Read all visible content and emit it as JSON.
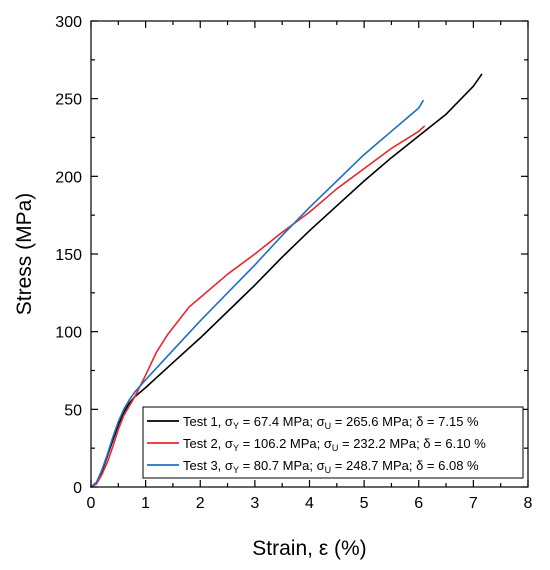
{
  "chart_data": {
    "type": "line",
    "title": "",
    "xlabel": "Strain, ε (%)",
    "ylabel": "Stress (MPa)",
    "xlim": [
      0,
      8
    ],
    "ylim": [
      0,
      300
    ],
    "x_ticks": [
      "0",
      "1",
      "2",
      "3",
      "4",
      "5",
      "6",
      "7",
      "8"
    ],
    "y_ticks": [
      "0",
      "50",
      "100",
      "150",
      "200",
      "250",
      "300"
    ],
    "grid": false,
    "legend_position": "bottom-right",
    "series": [
      {
        "name": "Test 1",
        "legend_parts": [
          "Test 1, σ",
          "Y",
          " = 67.4 MPa; σ",
          "U",
          " = 265.6 MPa; δ = 7.15 %"
        ],
        "color": "#000000",
        "x": [
          0,
          0.1,
          0.2,
          0.3,
          0.4,
          0.5,
          0.6,
          0.7,
          0.8,
          1.0,
          1.5,
          2.0,
          2.5,
          3.0,
          3.5,
          4.0,
          4.5,
          5.0,
          5.5,
          6.0,
          6.5,
          7.0,
          7.15
        ],
        "y": [
          0,
          3,
          10,
          20,
          30,
          40,
          48,
          54,
          58,
          64,
          80,
          96,
          113,
          130,
          148,
          165,
          181,
          197,
          212,
          226,
          240,
          258,
          265.6
        ]
      },
      {
        "name": "Test 2",
        "legend_parts": [
          "Test 2, σ",
          "Y",
          " = 106.2 MPa; σ",
          "U",
          " = 232.2 MPa; δ = 6.10 %"
        ],
        "color": "#e8282d",
        "x": [
          0,
          0.1,
          0.2,
          0.3,
          0.4,
          0.5,
          0.6,
          0.7,
          0.8,
          1.0,
          1.2,
          1.4,
          1.6,
          1.8,
          2.0,
          2.5,
          3.0,
          3.5,
          4.0,
          4.5,
          5.0,
          5.5,
          6.0,
          6.1
        ],
        "y": [
          0,
          2,
          8,
          16,
          26,
          37,
          46,
          52,
          58,
          72,
          87,
          98,
          107,
          116,
          122,
          137,
          150,
          164,
          177,
          192,
          205,
          218,
          229,
          232.2
        ]
      },
      {
        "name": "Test 3",
        "legend_parts": [
          "Test 3, σ",
          "Y",
          " = 80.7 MPa; σ",
          "U",
          " = 248.7 MPa; δ = 6.08 %"
        ],
        "color": "#1f6fc5",
        "x": [
          0,
          0.1,
          0.2,
          0.3,
          0.4,
          0.5,
          0.6,
          0.7,
          0.8,
          1.0,
          1.5,
          2.0,
          2.5,
          3.0,
          3.5,
          4.0,
          4.5,
          5.0,
          5.5,
          6.0,
          6.08
        ],
        "y": [
          0,
          3,
          11,
          21,
          32,
          42,
          50,
          56,
          61,
          69,
          88,
          107,
          125,
          143,
          162,
          180,
          197,
          214,
          229,
          244,
          248.7
        ]
      }
    ]
  }
}
